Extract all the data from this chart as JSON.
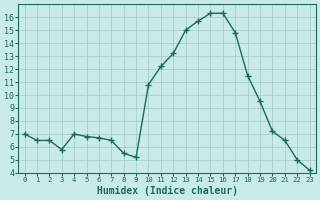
{
  "x": [
    0,
    1,
    2,
    3,
    4,
    5,
    6,
    7,
    8,
    9,
    10,
    11,
    12,
    13,
    14,
    15,
    16,
    17,
    18,
    19,
    20,
    21,
    22,
    23
  ],
  "y": [
    7,
    6.5,
    6.5,
    5.8,
    7,
    6.8,
    6.7,
    6.5,
    5.5,
    5.2,
    10.8,
    12.2,
    13.2,
    15.0,
    15.7,
    16.3,
    16.3,
    14.8,
    11.5,
    9.5,
    7.2,
    6.5,
    5.0,
    4.2
  ],
  "line_color": "#1a6b5e",
  "bg_color": "#c8eae8",
  "grid_color": "#a0c8c4",
  "xlabel": "Humidex (Indice chaleur)",
  "ylim": [
    4,
    17
  ],
  "xlim": [
    -0.5,
    23.5
  ],
  "yticks": [
    4,
    5,
    6,
    7,
    8,
    9,
    10,
    11,
    12,
    13,
    14,
    15,
    16
  ],
  "xticks": [
    0,
    1,
    2,
    3,
    4,
    5,
    6,
    7,
    8,
    9,
    10,
    11,
    12,
    13,
    14,
    15,
    16,
    17,
    18,
    19,
    20,
    21,
    22,
    23
  ],
  "label_fontsize": 7
}
